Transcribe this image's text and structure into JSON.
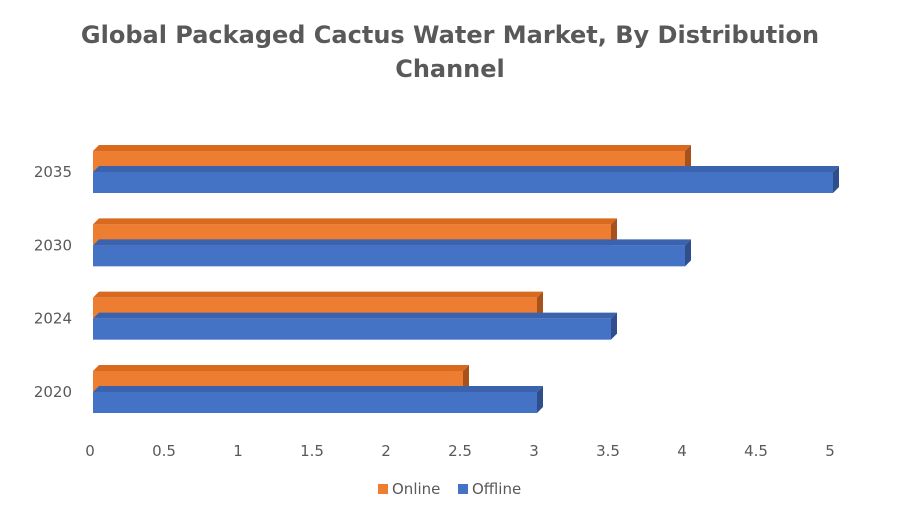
{
  "chart_data": {
    "type": "bar",
    "orientation": "horizontal",
    "style": "3d",
    "title_lines": [
      "Global Packaged Cactus Water Market, By Distribution",
      "Channel"
    ],
    "categories": [
      "2020",
      "2024",
      "2030",
      "2035"
    ],
    "series": [
      {
        "name": "Online",
        "values": [
          2.5,
          3.0,
          3.5,
          4.0
        ],
        "color": "#ED7D31",
        "top_color": "#D9691F",
        "side_color": "#A8521B"
      },
      {
        "name": "Offline",
        "values": [
          3.0,
          3.5,
          4.0,
          5.0
        ],
        "color": "#4472C4",
        "top_color": "#3B63AD",
        "side_color": "#2F4F8C"
      }
    ],
    "xlim": [
      0,
      5
    ],
    "x_ticks": [
      "0",
      "0.5",
      "1",
      "1.5",
      "2",
      "2.5",
      "3",
      "3.5",
      "4",
      "4.5",
      "5"
    ],
    "grid": false,
    "legend_position": "bottom"
  }
}
